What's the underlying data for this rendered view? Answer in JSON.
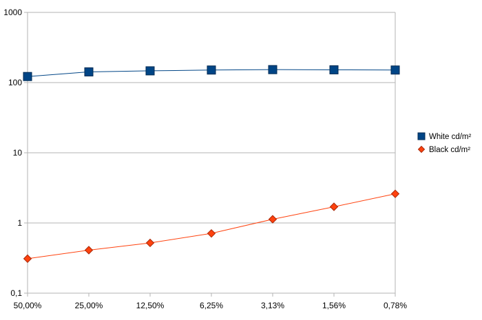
{
  "chart_data": {
    "type": "line",
    "categories": [
      "50,00%",
      "25,00%",
      "12,50%",
      "6,25%",
      "3,13%",
      "1,56%",
      "0,78%"
    ],
    "y_scale": "log",
    "ylim": [
      0.1,
      1000
    ],
    "y_ticks": [
      0.1,
      1,
      10,
      100,
      1000
    ],
    "y_tick_labels": [
      "0,1",
      "1",
      "10",
      "100",
      "1000"
    ],
    "grid": "horizontal",
    "legend_position": "right",
    "series": [
      {
        "name": "White cd/m²",
        "marker": "square",
        "color": "#004586",
        "values": [
          122,
          142,
          147,
          151,
          153,
          152,
          151
        ]
      },
      {
        "name": "Black cd/m²",
        "marker": "diamond",
        "color": "#ff420e",
        "values": [
          0.31,
          0.41,
          0.52,
          0.71,
          1.13,
          1.7,
          2.6
        ]
      }
    ]
  }
}
